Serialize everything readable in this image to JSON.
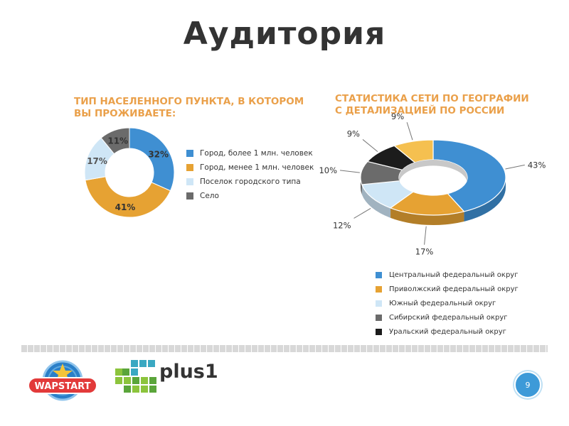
{
  "slide": {
    "title": "Аудитория",
    "page_number": "9"
  },
  "logos": {
    "wapstart_text": "WAPSTART",
    "plus1_text": "plus1"
  },
  "colors": {
    "blue": "#3f8fd2",
    "orange": "#e6a233",
    "lightblue": "#cfe6f6",
    "gray": "#6b6b6b",
    "black": "#1c1c1c",
    "yellow": "#f5c050",
    "title_orange": "#eaa04a"
  },
  "chart_data": [
    {
      "type": "pie",
      "variant": "donut",
      "title_lines": [
        "ТИП НАСЕЛЕННОГО ПУНКТА, В КОТОРОМ",
        "ВЫ ПРОЖИВАЕТЕ:"
      ],
      "legend_position": "right",
      "slices": [
        {
          "name": "Город, более 1 млн. человек",
          "value": 32,
          "label": "32%",
          "color": "#3f8fd2"
        },
        {
          "name": "Город, менее 1 млн. человек",
          "value": 41,
          "label": "41%",
          "color": "#e6a233"
        },
        {
          "name": "Поселок городского типа",
          "value": 17,
          "label": "17%",
          "color": "#cfe6f6"
        },
        {
          "name": "Село",
          "value": 11,
          "label": "11%",
          "color": "#6b6b6b"
        }
      ]
    },
    {
      "type": "pie",
      "variant": "donut-3d",
      "title_lines": [
        "СТАТИСТИКА СЕТИ ПО ГЕОГРАФИИ",
        "С ДЕТАЛИЗАЦИЕЙ ПО РОССИИ"
      ],
      "legend_position": "bottom",
      "slices": [
        {
          "name": "Центральный федеральный округ",
          "value": 43,
          "label": "43%",
          "color": "#3f8fd2"
        },
        {
          "name": "Приволжский федеральный округ",
          "value": 17,
          "label": "17%",
          "color": "#e6a233"
        },
        {
          "name": "Южный федеральный округ",
          "value": 12,
          "label": "12%",
          "color": "#cfe6f6"
        },
        {
          "name": "Сибирский федеральный округ",
          "value": 10,
          "label": "10%",
          "color": "#6b6b6b"
        },
        {
          "name": "Уральский федеральный округ",
          "value": 9,
          "label": "9%",
          "color": "#1c1c1c"
        },
        {
          "name": "",
          "value": 9,
          "label": "9%",
          "color": "#f5c050"
        }
      ]
    }
  ]
}
